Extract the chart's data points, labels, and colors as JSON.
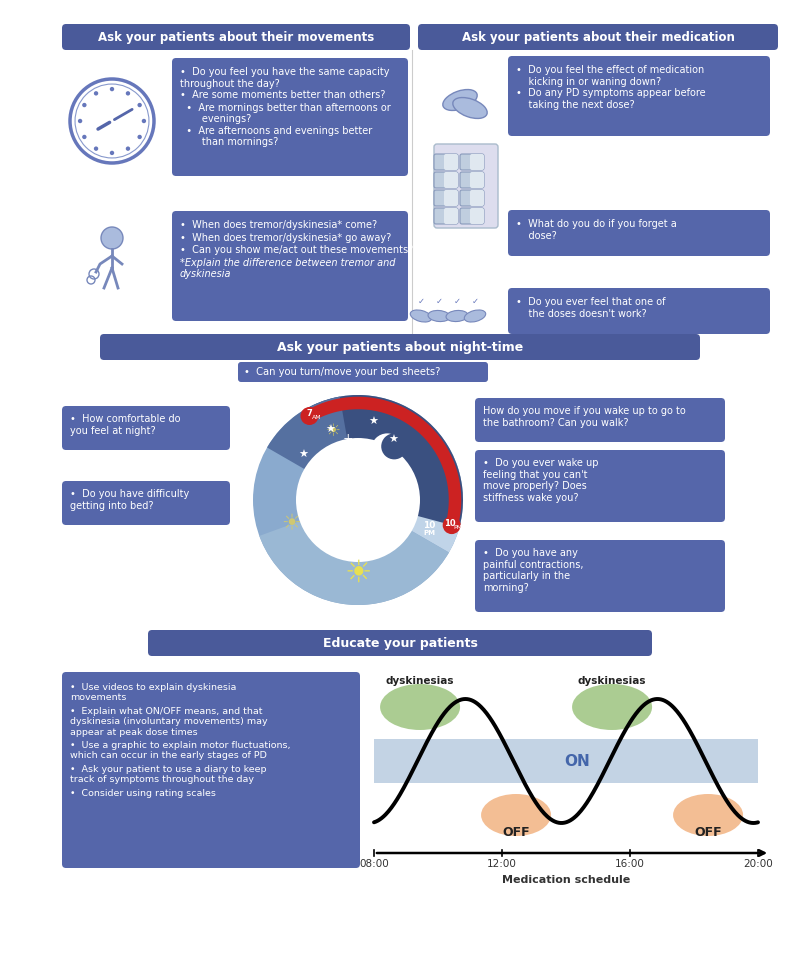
{
  "bg_color": "#ffffff",
  "header_blue": "#4a5a9a",
  "box_blue": "#5566aa",
  "text_white": "#ffffff",
  "text_dark": "#333333",
  "section1_title": "Ask your patients about their movements",
  "section2_title": "Ask your patients about their medication",
  "section3_title": "Ask your patients about night-time",
  "section4_title": "Educate your patients",
  "nighttime_box0": "Can you turn/move your bed sheets?",
  "nighttime_box1": "How comfortable do\nyou feel at night?",
  "nighttime_box2": "Do you have difficulty\ngetting into bed?",
  "nighttime_box3": "How do you move if you wake up to go to\nthe bathroom? Can you walk?",
  "nighttime_box4": "Do you ever wake up\nfeeling that you can't\nmove properly? Does\nstiffness wake you?",
  "nighttime_box5": "Do you have any\npainful contractions,\nparticularly in the\nmorning?",
  "educate_bullets": [
    "Use videos to explain dyskinesia\nmovements",
    "Explain what ON/OFF means, and that\ndyskinesia (involuntary movements) may\nappear at peak dose times",
    "Use a graphic to explain motor fluctuations,\nwhich can occur in the early stages of PD",
    "Ask your patient to use a diary to keep\ntrack of symptoms throughout the day",
    "Consider using rating scales"
  ],
  "med_schedule_times": [
    "08:00",
    "12:00",
    "16:00",
    "20:00"
  ],
  "med_schedule_label": "Medication schedule",
  "green_color": "#8fbc6e",
  "orange_color": "#f0a870",
  "night_dark": "#3a5080",
  "night_med": "#5570a0",
  "day_light": "#8aaace",
  "dawn_color": "#a8c0dc",
  "red_arc": "#cc2222"
}
